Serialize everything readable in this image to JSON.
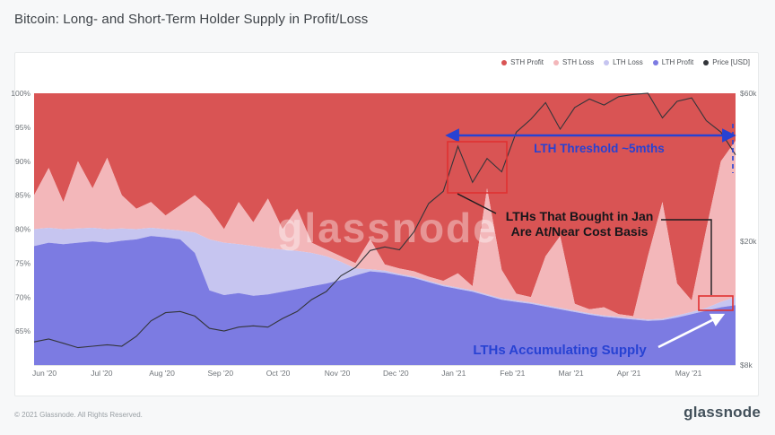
{
  "page": {
    "title": "Bitcoin: Long- and Short-Term Holder Supply in Profit/Loss",
    "footer_copyright": "© 2021 Glassnode. All Rights Reserved.",
    "brand": "glassnode",
    "watermark": "glassnode"
  },
  "legend": [
    {
      "label": "STH Profit",
      "color": "#d95454"
    },
    {
      "label": "STH Loss",
      "color": "#f3b7ba"
    },
    {
      "label": "LTH Loss",
      "color": "#c6c5f0"
    },
    {
      "label": "LTH Profit",
      "color": "#7c7be2"
    },
    {
      "label": "Price [USD]",
      "color": "#33353a"
    }
  ],
  "annotations": {
    "threshold_label": "LTH Threshold ~5mths",
    "cost_basis_line1": "LTHs That Bought in Jan",
    "cost_basis_line2": "Are At/Near Cost Basis",
    "accumulating_label": "LTHs Accumulating Supply",
    "accent_blue": "#2742d3",
    "box_red": "#e03131"
  },
  "chart_data": {
    "type": "area",
    "title": "Bitcoin: Long- and Short-Term Holder Supply in Profit/Loss",
    "semantics": "100% stacked supply bands, y-range 60-100% shown; b1=top of LTH Profit, b2=b1+LTH Loss, b3=b2+STH Loss, STH Profit fills to 100; price on right log axis in $k",
    "x_ticks": [
      "Jun '20",
      "Jul '20",
      "Aug '20",
      "Sep '20",
      "Oct '20",
      "Nov '20",
      "Dec '20",
      "Jan '21",
      "Feb '21",
      "Mar '21",
      "Apr '21",
      "May '21"
    ],
    "t": [
      0,
      0.25,
      0.5,
      0.75,
      1,
      1.25,
      1.5,
      1.75,
      2,
      2.25,
      2.5,
      2.75,
      3,
      3.25,
      3.5,
      3.75,
      4,
      4.25,
      4.5,
      4.75,
      5,
      5.25,
      5.5,
      5.75,
      6,
      6.25,
      6.5,
      6.75,
      7,
      7.25,
      7.5,
      7.75,
      8,
      8.25,
      8.5,
      8.75,
      9,
      9.25,
      9.5,
      9.75,
      10,
      10.25,
      10.5,
      10.75,
      11,
      11.25,
      11.5,
      11.75,
      12
    ],
    "b1": [
      77.5,
      78,
      77.8,
      78,
      78.2,
      78,
      78.3,
      78.5,
      79,
      78.8,
      78.5,
      76.5,
      71,
      70.3,
      70.6,
      70.2,
      70.4,
      70.8,
      71.2,
      71.6,
      72,
      72.5,
      73.2,
      73.8,
      73.6,
      73.2,
      72.8,
      72.2,
      71.6,
      71.2,
      70.8,
      70.2,
      69.6,
      69.3,
      69,
      68.6,
      68.2,
      67.8,
      67.4,
      67.1,
      66.9,
      66.7,
      66.5,
      66.6,
      67,
      67.5,
      68,
      68.5,
      68.8
    ],
    "b2": [
      80,
      80.2,
      80,
      80.1,
      80.2,
      80,
      80.1,
      80,
      80.2,
      80,
      79.8,
      79.5,
      78.5,
      78,
      77.8,
      77.5,
      77.2,
      77,
      76.8,
      76.5,
      76,
      75.2,
      74.2,
      74.1,
      73.9,
      73.4,
      73,
      72.4,
      71.8,
      71.4,
      71,
      70.4,
      69.8,
      69.5,
      69.2,
      68.8,
      68.4,
      68,
      67.6,
      67.3,
      67.1,
      66.9,
      66.7,
      66.8,
      67.3,
      67.8,
      68.4,
      69.3,
      70
    ],
    "b3": [
      85,
      89,
      84,
      90,
      86,
      90.5,
      85,
      83,
      84,
      82,
      83.5,
      85,
      83,
      80,
      84,
      81,
      84.5,
      80,
      83,
      78,
      77,
      76,
      75,
      78.5,
      74.8,
      74.2,
      73.8,
      73,
      72.4,
      73.5,
      71.6,
      86,
      74,
      70.5,
      70,
      76,
      79,
      69,
      68.2,
      68.5,
      67.5,
      67.2,
      76,
      84,
      72,
      69.5,
      80,
      90,
      93
    ],
    "price_usd_k": [
      9.5,
      9.7,
      9.4,
      9.1,
      9.2,
      9.3,
      9.2,
      9.9,
      11.1,
      11.8,
      11.9,
      11.5,
      10.5,
      10.3,
      10.6,
      10.7,
      10.6,
      11.3,
      11.9,
      13,
      13.8,
      15.5,
      16.5,
      18.7,
      19.2,
      18.8,
      21.5,
      26.5,
      29,
      40.5,
      31,
      37,
      33.5,
      45,
      49.5,
      56,
      46,
      54,
      57.5,
      55,
      58.5,
      59.5,
      60,
      50,
      56.5,
      58,
      49,
      45,
      38
    ],
    "areas": [
      {
        "name": "sth-profit",
        "label": "STH Profit",
        "color": "#d95454",
        "lower": "b3",
        "upper": 100
      },
      {
        "name": "sth-loss",
        "label": "STH Loss",
        "color": "#f3b7ba",
        "lower": "b2",
        "upper": "b3"
      },
      {
        "name": "lth-loss",
        "label": "LTH Loss",
        "color": "#c6c5f0",
        "lower": "b1",
        "upper": "b2"
      },
      {
        "name": "lth-profit",
        "label": "LTH Profit",
        "color": "#7c7be2",
        "lower": 60,
        "upper": "b1"
      }
    ],
    "y_left": {
      "min": 60,
      "max": 100,
      "ticks": [
        {
          "label": "100%",
          "value": 100
        },
        {
          "label": "95%",
          "value": 95
        },
        {
          "label": "90%",
          "value": 90
        },
        {
          "label": "85%",
          "value": 85
        },
        {
          "label": "80%",
          "value": 80
        },
        {
          "label": "75%",
          "value": 75
        },
        {
          "label": "70%",
          "value": 70
        },
        {
          "label": "65%",
          "value": 65
        }
      ]
    },
    "y_right": {
      "scale": "log",
      "min_k": 8,
      "max_k": 60,
      "ticks": [
        {
          "label": "$60k",
          "value_k": 60
        },
        {
          "label": "$20k",
          "value_k": 20
        },
        {
          "label": "$8k",
          "value_k": 8
        }
      ]
    }
  }
}
